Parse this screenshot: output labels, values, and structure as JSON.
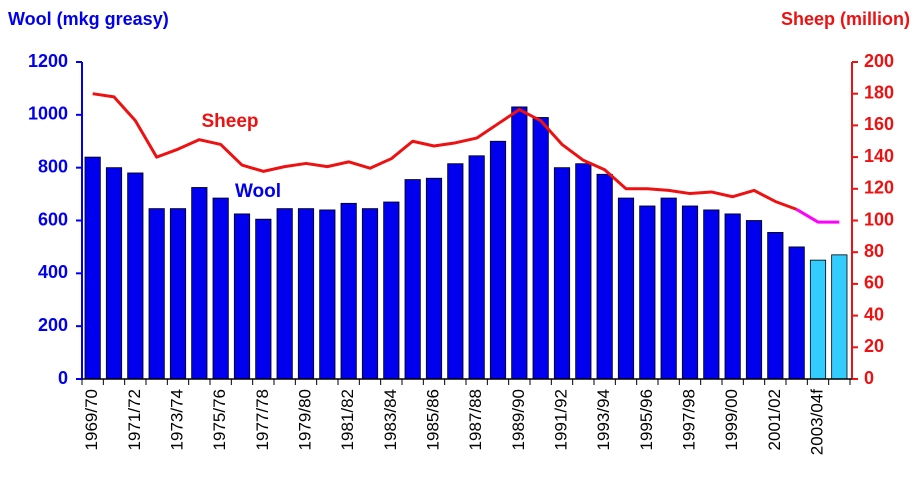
{
  "chart_data": {
    "type": "bar_line",
    "y_title": "Wool (mkg greasy)",
    "y2_title": "Sheep (million)",
    "categories": [
      "1969/70",
      null,
      "1971/72",
      null,
      "1973/74",
      null,
      "1975/76",
      null,
      "1977/78",
      null,
      "1979/80",
      null,
      "1981/82",
      null,
      "1983/84",
      null,
      "1985/86",
      null,
      "1987/88",
      null,
      "1989/90",
      null,
      "1991/92",
      null,
      "1993/94",
      null,
      "1995/96",
      null,
      "1997/98",
      null,
      "1999/00",
      null,
      "2001/02",
      null,
      "2003/04f",
      null
    ],
    "series": [
      {
        "name": "Wool",
        "type": "bar",
        "color": "#0000ee",
        "colors": [
          "#0000ee",
          "#0000ee",
          "#0000ee",
          "#0000ee",
          "#0000ee",
          "#0000ee",
          "#0000ee",
          "#0000ee",
          "#0000ee",
          "#0000ee",
          "#0000ee",
          "#0000ee",
          "#0000ee",
          "#0000ee",
          "#0000ee",
          "#0000ee",
          "#0000ee",
          "#0000ee",
          "#0000ee",
          "#0000ee",
          "#0000ee",
          "#0000ee",
          "#0000ee",
          "#0000ee",
          "#0000ee",
          "#0000ee",
          "#0000ee",
          "#0000ee",
          "#0000ee",
          "#0000ee",
          "#0000ee",
          "#0000ee",
          "#0000ee",
          "#0000ee",
          "#33ccff",
          "#33ccff"
        ],
        "values": [
          840,
          800,
          780,
          645,
          645,
          725,
          685,
          625,
          605,
          645,
          645,
          640,
          665,
          645,
          670,
          755,
          760,
          815,
          845,
          900,
          1030,
          990,
          800,
          815,
          775,
          685,
          655,
          685,
          655,
          640,
          625,
          600,
          555,
          500,
          450,
          470
        ]
      },
      {
        "name": "Sheep",
        "type": "line",
        "axis": "y2",
        "color": "#ee1111",
        "colors": [
          "#ee1111",
          "#ee1111",
          "#ee1111",
          "#ee1111",
          "#ee1111",
          "#ee1111",
          "#ee1111",
          "#ee1111",
          "#ee1111",
          "#ee1111",
          "#ee1111",
          "#ee1111",
          "#ee1111",
          "#ee1111",
          "#ee1111",
          "#ee1111",
          "#ee1111",
          "#ee1111",
          "#ee1111",
          "#ee1111",
          "#ee1111",
          "#ee1111",
          "#ee1111",
          "#ee1111",
          "#ee1111",
          "#ee1111",
          "#ee1111",
          "#ee1111",
          "#ee1111",
          "#ee1111",
          "#ee1111",
          "#ee1111",
          "#ee1111",
          "#ee1111",
          "#ff00ff",
          "#ff00ff"
        ],
        "values": [
          180,
          178,
          163,
          140,
          145,
          151,
          148,
          135,
          131,
          134,
          136,
          134,
          137,
          133,
          139,
          150,
          147,
          149,
          152,
          161,
          170,
          163,
          148,
          138,
          132,
          120,
          120,
          119,
          117,
          118,
          115,
          119,
          112,
          107,
          99,
          99
        ]
      }
    ],
    "ylim": [
      0,
      1200
    ],
    "yticks": [
      0,
      200,
      400,
      600,
      800,
      1000,
      1200
    ],
    "y2lim": [
      0,
      200
    ],
    "y2ticks": [
      0,
      20,
      40,
      60,
      80,
      100,
      120,
      140,
      160,
      180,
      200
    ],
    "ycolor": "#0000ee",
    "y2color": "#ee1111",
    "grid": false
  }
}
